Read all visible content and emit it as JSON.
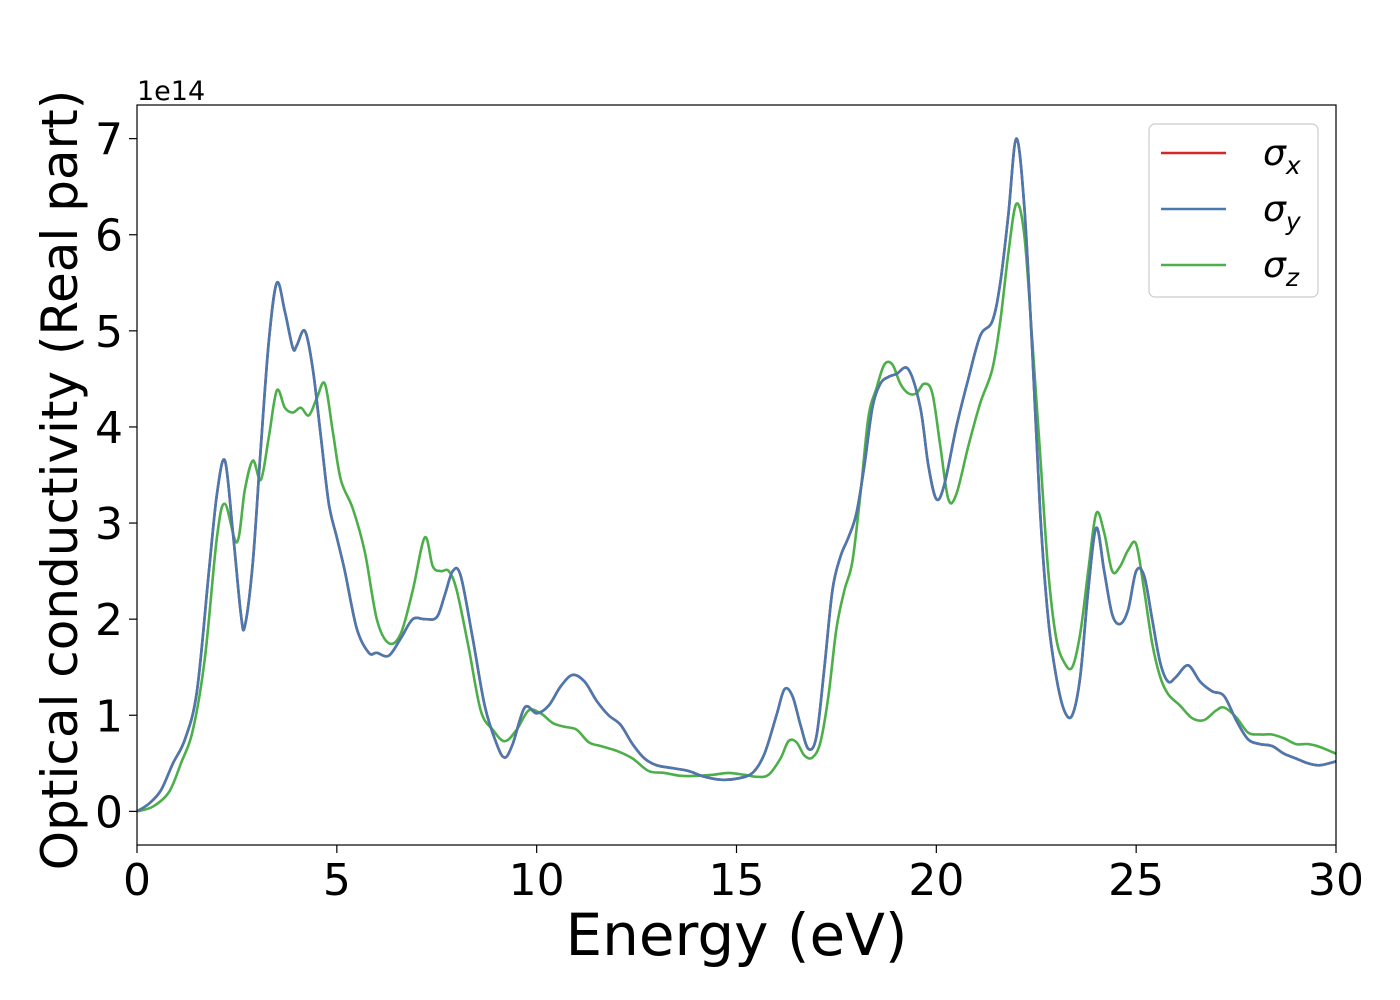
{
  "chart_data": {
    "type": "line",
    "title": "",
    "xlabel": "Energy (eV)",
    "ylabel": "Optical conductivity (Real part)",
    "offset_text": "1e14",
    "y_scale": 100000000000000.0,
    "xlim": [
      0,
      30
    ],
    "ylim": [
      -0.35,
      7.35
    ],
    "x_ticks": [
      0,
      5,
      10,
      15,
      20,
      25,
      30
    ],
    "x_tick_labels": [
      "0",
      "5",
      "10",
      "15",
      "20",
      "25",
      "30"
    ],
    "y_ticks": [
      0,
      1,
      2,
      3,
      4,
      5,
      6,
      7
    ],
    "y_tick_labels": [
      "0",
      "1",
      "2",
      "3",
      "4",
      "5",
      "6",
      "7"
    ],
    "grid": false,
    "legend_position": "top-right",
    "series": [
      {
        "name": "σx",
        "legend_base": "σ",
        "legend_sub": "x",
        "color": "#d62728",
        "x": [
          0,
          0.3,
          0.6,
          0.9,
          1.2,
          1.5,
          1.8,
          2.0,
          2.2,
          2.4,
          2.6,
          2.7,
          2.9,
          3.1,
          3.3,
          3.5,
          3.7,
          3.9,
          4.0,
          4.2,
          4.4,
          4.6,
          4.8,
          5.0,
          5.2,
          5.5,
          5.8,
          6.0,
          6.3,
          6.6,
          6.9,
          7.2,
          7.5,
          7.7,
          7.9,
          8.1,
          8.4,
          8.7,
          9.0,
          9.2,
          9.4,
          9.7,
          10.0,
          10.3,
          10.6,
          10.9,
          11.2,
          11.5,
          11.8,
          12.1,
          12.4,
          12.7,
          13.0,
          13.4,
          13.8,
          14.2,
          14.6,
          15.0,
          15.4,
          15.7,
          16.0,
          16.2,
          16.4,
          16.6,
          16.8,
          17.0,
          17.2,
          17.4,
          17.6,
          17.8,
          18.0,
          18.2,
          18.4,
          18.6,
          18.8,
          19.0,
          19.3,
          19.6,
          19.8,
          20.0,
          20.2,
          20.5,
          20.8,
          21.1,
          21.4,
          21.6,
          21.8,
          22.0,
          22.2,
          22.4,
          22.6,
          22.8,
          23.0,
          23.2,
          23.4,
          23.6,
          23.8,
          24.0,
          24.2,
          24.4,
          24.6,
          24.8,
          25.0,
          25.2,
          25.4,
          25.6,
          25.8,
          26.0,
          26.3,
          26.6,
          26.9,
          27.2,
          27.5,
          27.8,
          28.1,
          28.4,
          28.7,
          29.0,
          29.3,
          29.6,
          30.0
        ],
        "y": [
          0,
          0.08,
          0.22,
          0.5,
          0.75,
          1.25,
          2.5,
          3.3,
          3.65,
          2.9,
          2.05,
          1.93,
          2.6,
          3.8,
          4.9,
          5.5,
          5.2,
          4.82,
          4.85,
          5.0,
          4.6,
          3.9,
          3.2,
          2.85,
          2.5,
          1.9,
          1.65,
          1.65,
          1.62,
          1.8,
          2.0,
          2.0,
          2.02,
          2.25,
          2.5,
          2.45,
          1.8,
          1.1,
          0.7,
          0.56,
          0.7,
          1.08,
          1.02,
          1.1,
          1.3,
          1.42,
          1.35,
          1.15,
          1.0,
          0.9,
          0.7,
          0.55,
          0.48,
          0.45,
          0.42,
          0.36,
          0.33,
          0.34,
          0.4,
          0.6,
          1.0,
          1.27,
          1.2,
          0.9,
          0.65,
          0.78,
          1.5,
          2.3,
          2.65,
          2.85,
          3.1,
          3.6,
          4.2,
          4.45,
          4.52,
          4.55,
          4.6,
          4.2,
          3.6,
          3.25,
          3.4,
          4.0,
          4.5,
          4.95,
          5.1,
          5.5,
          6.2,
          7.0,
          6.3,
          4.8,
          3.1,
          2.0,
          1.4,
          1.05,
          1.0,
          1.4,
          2.3,
          2.95,
          2.5,
          2.05,
          1.95,
          2.1,
          2.5,
          2.45,
          2.0,
          1.55,
          1.35,
          1.4,
          1.52,
          1.35,
          1.25,
          1.2,
          0.95,
          0.75,
          0.7,
          0.68,
          0.6,
          0.55,
          0.5,
          0.48,
          0.52
        ]
      },
      {
        "name": "σy",
        "legend_base": "σ",
        "legend_sub": "y",
        "color": "#4a79b0",
        "x": [
          0,
          0.3,
          0.6,
          0.9,
          1.2,
          1.5,
          1.8,
          2.0,
          2.2,
          2.4,
          2.6,
          2.7,
          2.9,
          3.1,
          3.3,
          3.5,
          3.7,
          3.9,
          4.0,
          4.2,
          4.4,
          4.6,
          4.8,
          5.0,
          5.2,
          5.5,
          5.8,
          6.0,
          6.3,
          6.6,
          6.9,
          7.2,
          7.5,
          7.7,
          7.9,
          8.1,
          8.4,
          8.7,
          9.0,
          9.2,
          9.4,
          9.7,
          10.0,
          10.3,
          10.6,
          10.9,
          11.2,
          11.5,
          11.8,
          12.1,
          12.4,
          12.7,
          13.0,
          13.4,
          13.8,
          14.2,
          14.6,
          15.0,
          15.4,
          15.7,
          16.0,
          16.2,
          16.4,
          16.6,
          16.8,
          17.0,
          17.2,
          17.4,
          17.6,
          17.8,
          18.0,
          18.2,
          18.4,
          18.6,
          18.8,
          19.0,
          19.3,
          19.6,
          19.8,
          20.0,
          20.2,
          20.5,
          20.8,
          21.1,
          21.4,
          21.6,
          21.8,
          22.0,
          22.2,
          22.4,
          22.6,
          22.8,
          23.0,
          23.2,
          23.4,
          23.6,
          23.8,
          24.0,
          24.2,
          24.4,
          24.6,
          24.8,
          25.0,
          25.2,
          25.4,
          25.6,
          25.8,
          26.0,
          26.3,
          26.6,
          26.9,
          27.2,
          27.5,
          27.8,
          28.1,
          28.4,
          28.7,
          29.0,
          29.3,
          29.6,
          30.0
        ],
        "y": [
          0,
          0.08,
          0.22,
          0.5,
          0.75,
          1.25,
          2.5,
          3.3,
          3.65,
          2.9,
          2.05,
          1.93,
          2.6,
          3.8,
          4.9,
          5.5,
          5.2,
          4.82,
          4.85,
          5.0,
          4.6,
          3.9,
          3.2,
          2.85,
          2.5,
          1.9,
          1.65,
          1.65,
          1.62,
          1.8,
          2.0,
          2.0,
          2.02,
          2.25,
          2.5,
          2.45,
          1.8,
          1.1,
          0.7,
          0.56,
          0.7,
          1.08,
          1.02,
          1.1,
          1.3,
          1.42,
          1.35,
          1.15,
          1.0,
          0.9,
          0.7,
          0.55,
          0.48,
          0.45,
          0.42,
          0.36,
          0.33,
          0.34,
          0.4,
          0.6,
          1.0,
          1.27,
          1.2,
          0.9,
          0.65,
          0.78,
          1.5,
          2.3,
          2.65,
          2.85,
          3.1,
          3.6,
          4.2,
          4.45,
          4.52,
          4.55,
          4.6,
          4.2,
          3.6,
          3.25,
          3.4,
          4.0,
          4.5,
          4.95,
          5.1,
          5.5,
          6.2,
          7.0,
          6.3,
          4.8,
          3.1,
          2.0,
          1.4,
          1.05,
          1.0,
          1.4,
          2.3,
          2.95,
          2.5,
          2.05,
          1.95,
          2.1,
          2.5,
          2.45,
          2.0,
          1.55,
          1.35,
          1.4,
          1.52,
          1.35,
          1.25,
          1.2,
          0.95,
          0.75,
          0.7,
          0.68,
          0.6,
          0.55,
          0.5,
          0.48,
          0.52
        ]
      },
      {
        "name": "σz",
        "legend_base": "σ",
        "legend_sub": "z",
        "color": "#4daf4a",
        "x": [
          0,
          0.4,
          0.8,
          1.1,
          1.4,
          1.7,
          2.0,
          2.2,
          2.5,
          2.7,
          2.9,
          3.1,
          3.3,
          3.5,
          3.7,
          3.9,
          4.1,
          4.3,
          4.5,
          4.7,
          4.9,
          5.1,
          5.4,
          5.7,
          6.0,
          6.3,
          6.6,
          6.9,
          7.2,
          7.4,
          7.6,
          7.8,
          8.0,
          8.3,
          8.6,
          8.9,
          9.2,
          9.5,
          9.8,
          10.1,
          10.4,
          10.7,
          11.0,
          11.3,
          11.6,
          12.0,
          12.4,
          12.8,
          13.2,
          13.6,
          14.0,
          14.4,
          14.8,
          15.2,
          15.5,
          15.8,
          16.1,
          16.3,
          16.5,
          16.7,
          16.9,
          17.1,
          17.3,
          17.5,
          17.7,
          17.9,
          18.1,
          18.3,
          18.5,
          18.7,
          18.9,
          19.1,
          19.3,
          19.5,
          19.7,
          19.9,
          20.1,
          20.3,
          20.5,
          20.8,
          21.1,
          21.4,
          21.6,
          21.8,
          22.0,
          22.2,
          22.4,
          22.6,
          22.8,
          23.0,
          23.2,
          23.4,
          23.6,
          23.8,
          24.0,
          24.2,
          24.4,
          24.6,
          24.8,
          25.0,
          25.2,
          25.4,
          25.6,
          25.8,
          26.1,
          26.4,
          26.7,
          27.0,
          27.2,
          27.5,
          27.8,
          28.1,
          28.4,
          28.7,
          29.0,
          29.3,
          29.6,
          30.0
        ],
        "y": [
          0,
          0.05,
          0.2,
          0.5,
          0.85,
          1.6,
          2.85,
          3.2,
          2.8,
          3.35,
          3.65,
          3.45,
          3.9,
          4.38,
          4.2,
          4.15,
          4.2,
          4.12,
          4.3,
          4.45,
          3.95,
          3.45,
          3.15,
          2.7,
          2.0,
          1.75,
          1.85,
          2.3,
          2.85,
          2.55,
          2.5,
          2.5,
          2.3,
          1.7,
          1.05,
          0.85,
          0.73,
          0.85,
          1.05,
          1.02,
          0.92,
          0.88,
          0.85,
          0.72,
          0.68,
          0.63,
          0.55,
          0.42,
          0.4,
          0.37,
          0.37,
          0.38,
          0.4,
          0.38,
          0.36,
          0.38,
          0.55,
          0.73,
          0.72,
          0.58,
          0.56,
          0.72,
          1.2,
          1.9,
          2.3,
          2.6,
          3.3,
          4.1,
          4.4,
          4.65,
          4.65,
          4.45,
          4.35,
          4.35,
          4.45,
          4.35,
          3.8,
          3.25,
          3.3,
          3.8,
          4.25,
          4.6,
          5.1,
          5.8,
          6.32,
          6.0,
          4.9,
          3.7,
          2.5,
          1.8,
          1.55,
          1.5,
          1.85,
          2.5,
          3.1,
          2.9,
          2.5,
          2.55,
          2.72,
          2.78,
          2.3,
          1.75,
          1.4,
          1.22,
          1.1,
          0.97,
          0.95,
          1.05,
          1.08,
          0.98,
          0.82,
          0.8,
          0.8,
          0.76,
          0.7,
          0.7,
          0.67,
          0.6
        ]
      }
    ]
  }
}
